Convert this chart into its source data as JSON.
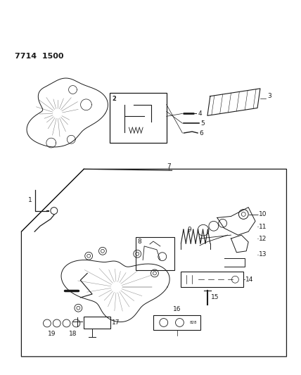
{
  "title": "7714 1500",
  "bg_color": "#ffffff",
  "line_color": "#1a1a1a",
  "figsize": [
    4.28,
    5.33
  ],
  "dpi": 100
}
